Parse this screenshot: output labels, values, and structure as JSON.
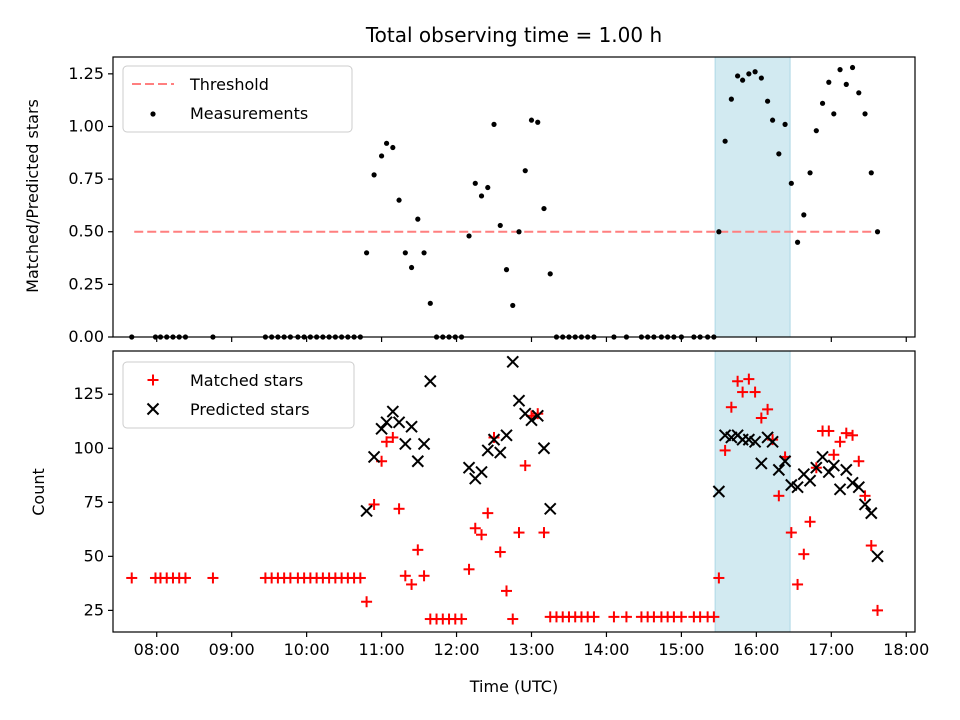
{
  "title": "Total observing time = 1.00 h",
  "colors": {
    "threshold": "#ff7f7f",
    "measurements": "#000000",
    "matched": "#ff0000",
    "predicted": "#000000",
    "highlight": "#add8e6"
  },
  "chart_data": [
    {
      "type": "scatter",
      "panel": "top",
      "ylabel": "Matched/Predicted stars",
      "ylim": [
        0,
        1.33
      ],
      "yticks": [
        "0.00",
        "0.25",
        "0.50",
        "0.75",
        "1.00",
        "1.25"
      ],
      "xlim": [
        "07:25",
        "18:07"
      ],
      "highlight_span": [
        "15:27",
        "16:27"
      ],
      "legend": {
        "placement": "top-left",
        "entries": [
          "Threshold",
          "Measurements"
        ]
      },
      "threshold": {
        "name": "Threshold",
        "y": 0.5,
        "x_range": [
          "07:42",
          "17:37"
        ],
        "style": "dashed"
      },
      "series": [
        {
          "name": "Measurements",
          "marker": "dot",
          "points": [
            [
              "07:40",
              0
            ],
            [
              "07:59",
              0
            ],
            [
              "08:03",
              0
            ],
            [
              "08:08",
              0
            ],
            [
              "08:13",
              0
            ],
            [
              "08:18",
              0
            ],
            [
              "08:23",
              0
            ],
            [
              "08:45",
              0
            ],
            [
              "09:27",
              0
            ],
            [
              "09:32",
              0
            ],
            [
              "09:37",
              0
            ],
            [
              "09:42",
              0
            ],
            [
              "09:47",
              0
            ],
            [
              "09:53",
              0
            ],
            [
              "09:58",
              0
            ],
            [
              "10:03",
              0
            ],
            [
              "10:08",
              0
            ],
            [
              "10:13",
              0
            ],
            [
              "10:18",
              0
            ],
            [
              "10:23",
              0
            ],
            [
              "10:28",
              0
            ],
            [
              "10:33",
              0
            ],
            [
              "10:38",
              0
            ],
            [
              "10:43",
              0
            ],
            [
              "10:48",
              0.4
            ],
            [
              "10:54",
              0.77
            ],
            [
              "11:00",
              0.86
            ],
            [
              "11:04",
              0.92
            ],
            [
              "11:09",
              0.9
            ],
            [
              "11:14",
              0.65
            ],
            [
              "11:19",
              0.4
            ],
            [
              "11:24",
              0.33
            ],
            [
              "11:29",
              0.56
            ],
            [
              "11:34",
              0.4
            ],
            [
              "11:39",
              0.16
            ],
            [
              "11:44",
              0
            ],
            [
              "11:49",
              0
            ],
            [
              "11:54",
              0
            ],
            [
              "11:59",
              0
            ],
            [
              "12:04",
              0
            ],
            [
              "12:10",
              0.48
            ],
            [
              "12:15",
              0.73
            ],
            [
              "12:20",
              0.67
            ],
            [
              "12:25",
              0.71
            ],
            [
              "12:30",
              1.01
            ],
            [
              "12:35",
              0.53
            ],
            [
              "12:40",
              0.32
            ],
            [
              "12:45",
              0.15
            ],
            [
              "12:50",
              0.5
            ],
            [
              "12:55",
              0.79
            ],
            [
              "13:00",
              1.03
            ],
            [
              "13:05",
              1.02
            ],
            [
              "13:10",
              0.61
            ],
            [
              "13:15",
              0.3
            ],
            [
              "13:20",
              0
            ],
            [
              "13:25",
              0
            ],
            [
              "13:30",
              0
            ],
            [
              "13:35",
              0
            ],
            [
              "13:40",
              0
            ],
            [
              "13:45",
              0
            ],
            [
              "13:50",
              0
            ],
            [
              "14:06",
              0
            ],
            [
              "14:16",
              0
            ],
            [
              "14:28",
              0
            ],
            [
              "14:33",
              0
            ],
            [
              "14:38",
              0
            ],
            [
              "14:44",
              0
            ],
            [
              "14:49",
              0
            ],
            [
              "14:54",
              0
            ],
            [
              "15:00",
              0
            ],
            [
              "15:10",
              0
            ],
            [
              "15:15",
              0
            ],
            [
              "15:21",
              0
            ],
            [
              "15:26",
              0
            ],
            [
              "15:30",
              0.5
            ],
            [
              "15:35",
              0.93
            ],
            [
              "15:40",
              1.13
            ],
            [
              "15:45",
              1.24
            ],
            [
              "15:49",
              1.22
            ],
            [
              "15:54",
              1.25
            ],
            [
              "15:59",
              1.26
            ],
            [
              "16:04",
              1.23
            ],
            [
              "16:09",
              1.12
            ],
            [
              "16:13",
              1.03
            ],
            [
              "16:18",
              0.87
            ],
            [
              "16:23",
              1.01
            ],
            [
              "16:28",
              0.73
            ],
            [
              "16:33",
              0.45
            ],
            [
              "16:38",
              0.58
            ],
            [
              "16:43",
              0.78
            ],
            [
              "16:48",
              0.98
            ],
            [
              "16:53",
              1.11
            ],
            [
              "16:58",
              1.21
            ],
            [
              "17:02",
              1.06
            ],
            [
              "17:07",
              1.27
            ],
            [
              "17:12",
              1.2
            ],
            [
              "17:17",
              1.28
            ],
            [
              "17:22",
              1.16
            ],
            [
              "17:27",
              1.06
            ],
            [
              "17:32",
              0.78
            ],
            [
              "17:37",
              0.5
            ]
          ]
        }
      ]
    },
    {
      "type": "scatter",
      "panel": "bottom",
      "ylabel": "Count",
      "xlabel": "Time (UTC)",
      "ylim": [
        15,
        145
      ],
      "yticks": [
        "25",
        "50",
        "75",
        "100",
        "125"
      ],
      "xticks": [
        "08:00",
        "09:00",
        "10:00",
        "11:00",
        "12:00",
        "13:00",
        "14:00",
        "15:00",
        "16:00",
        "17:00",
        "18:00"
      ],
      "xlim": [
        "07:25",
        "18:07"
      ],
      "highlight_span": [
        "15:27",
        "16:27"
      ],
      "legend": {
        "placement": "top-left",
        "entries": [
          "Matched stars",
          "Predicted stars"
        ]
      },
      "series": [
        {
          "name": "Matched stars",
          "marker": "plus",
          "points": [
            [
              "07:40",
              40
            ],
            [
              "07:59",
              40
            ],
            [
              "08:03",
              40
            ],
            [
              "08:08",
              40
            ],
            [
              "08:13",
              40
            ],
            [
              "08:18",
              40
            ],
            [
              "08:23",
              40
            ],
            [
              "08:45",
              40
            ],
            [
              "09:27",
              40
            ],
            [
              "09:32",
              40
            ],
            [
              "09:37",
              40
            ],
            [
              "09:42",
              40
            ],
            [
              "09:47",
              40
            ],
            [
              "09:53",
              40
            ],
            [
              "09:58",
              40
            ],
            [
              "10:03",
              40
            ],
            [
              "10:08",
              40
            ],
            [
              "10:13",
              40
            ],
            [
              "10:18",
              40
            ],
            [
              "10:23",
              40
            ],
            [
              "10:28",
              40
            ],
            [
              "10:33",
              40
            ],
            [
              "10:38",
              40
            ],
            [
              "10:43",
              40
            ],
            [
              "10:48",
              29
            ],
            [
              "10:54",
              74
            ],
            [
              "11:00",
              94
            ],
            [
              "11:04",
              103
            ],
            [
              "11:09",
              105
            ],
            [
              "11:14",
              72
            ],
            [
              "11:19",
              41
            ],
            [
              "11:24",
              37
            ],
            [
              "11:29",
              53
            ],
            [
              "11:34",
              41
            ],
            [
              "11:39",
              21
            ],
            [
              "11:44",
              21
            ],
            [
              "11:49",
              21
            ],
            [
              "11:54",
              21
            ],
            [
              "11:59",
              21
            ],
            [
              "12:04",
              21
            ],
            [
              "12:10",
              44
            ],
            [
              "12:15",
              63
            ],
            [
              "12:20",
              60
            ],
            [
              "12:25",
              70
            ],
            [
              "12:30",
              105
            ],
            [
              "12:35",
              52
            ],
            [
              "12:40",
              34
            ],
            [
              "12:45",
              21
            ],
            [
              "12:50",
              61
            ],
            [
              "12:55",
              92
            ],
            [
              "13:00",
              115
            ],
            [
              "13:05",
              116
            ],
            [
              "13:10",
              61
            ],
            [
              "13:15",
              22
            ],
            [
              "13:20",
              22
            ],
            [
              "13:25",
              22
            ],
            [
              "13:30",
              22
            ],
            [
              "13:35",
              22
            ],
            [
              "13:40",
              22
            ],
            [
              "13:45",
              22
            ],
            [
              "13:50",
              22
            ],
            [
              "14:06",
              22
            ],
            [
              "14:16",
              22
            ],
            [
              "14:28",
              22
            ],
            [
              "14:33",
              22
            ],
            [
              "14:38",
              22
            ],
            [
              "14:44",
              22
            ],
            [
              "14:49",
              22
            ],
            [
              "14:54",
              22
            ],
            [
              "15:00",
              22
            ],
            [
              "15:10",
              22
            ],
            [
              "15:15",
              22
            ],
            [
              "15:21",
              22
            ],
            [
              "15:26",
              22
            ],
            [
              "15:30",
              40
            ],
            [
              "15:35",
              99
            ],
            [
              "15:40",
              119
            ],
            [
              "15:45",
              131
            ],
            [
              "15:49",
              126
            ],
            [
              "15:54",
              132
            ],
            [
              "15:59",
              126
            ],
            [
              "16:04",
              114
            ],
            [
              "16:09",
              118
            ],
            [
              "16:13",
              104
            ],
            [
              "16:18",
              78
            ],
            [
              "16:23",
              96
            ],
            [
              "16:28",
              61
            ],
            [
              "16:33",
              37
            ],
            [
              "16:38",
              51
            ],
            [
              "16:43",
              66
            ],
            [
              "16:48",
              91
            ],
            [
              "16:53",
              108
            ],
            [
              "16:58",
              108
            ],
            [
              "17:02",
              97
            ],
            [
              "17:07",
              103
            ],
            [
              "17:12",
              107
            ],
            [
              "17:17",
              106
            ],
            [
              "17:22",
              94
            ],
            [
              "17:27",
              78
            ],
            [
              "17:32",
              55
            ],
            [
              "17:37",
              25
            ]
          ]
        },
        {
          "name": "Predicted stars",
          "marker": "x",
          "points": [
            [
              "10:48",
              71
            ],
            [
              "10:54",
              96
            ],
            [
              "11:00",
              109
            ],
            [
              "11:04",
              112
            ],
            [
              "11:09",
              117
            ],
            [
              "11:14",
              112
            ],
            [
              "11:19",
              102
            ],
            [
              "11:24",
              110
            ],
            [
              "11:29",
              94
            ],
            [
              "11:34",
              102
            ],
            [
              "11:39",
              131
            ],
            [
              "12:10",
              91
            ],
            [
              "12:15",
              86
            ],
            [
              "12:20",
              89
            ],
            [
              "12:25",
              99
            ],
            [
              "12:30",
              104
            ],
            [
              "12:35",
              98
            ],
            [
              "12:40",
              106
            ],
            [
              "12:45",
              140
            ],
            [
              "12:50",
              122
            ],
            [
              "12:55",
              116
            ],
            [
              "13:00",
              113
            ],
            [
              "13:05",
              115
            ],
            [
              "13:10",
              100
            ],
            [
              "13:15",
              72
            ],
            [
              "15:30",
              80
            ],
            [
              "15:35",
              106
            ],
            [
              "15:40",
              105
            ],
            [
              "15:45",
              106
            ],
            [
              "15:49",
              104
            ],
            [
              "15:54",
              104
            ],
            [
              "15:59",
              103
            ],
            [
              "16:04",
              93
            ],
            [
              "16:09",
              105
            ],
            [
              "16:13",
              103
            ],
            [
              "16:18",
              90
            ],
            [
              "16:23",
              94
            ],
            [
              "16:28",
              83
            ],
            [
              "16:33",
              82
            ],
            [
              "16:38",
              88
            ],
            [
              "16:43",
              85
            ],
            [
              "16:48",
              91
            ],
            [
              "16:53",
              96
            ],
            [
              "16:58",
              89
            ],
            [
              "17:02",
              92
            ],
            [
              "17:07",
              81
            ],
            [
              "17:12",
              90
            ],
            [
              "17:17",
              84
            ],
            [
              "17:22",
              82
            ],
            [
              "17:27",
              74
            ],
            [
              "17:32",
              70
            ],
            [
              "17:37",
              50
            ]
          ]
        }
      ]
    }
  ]
}
